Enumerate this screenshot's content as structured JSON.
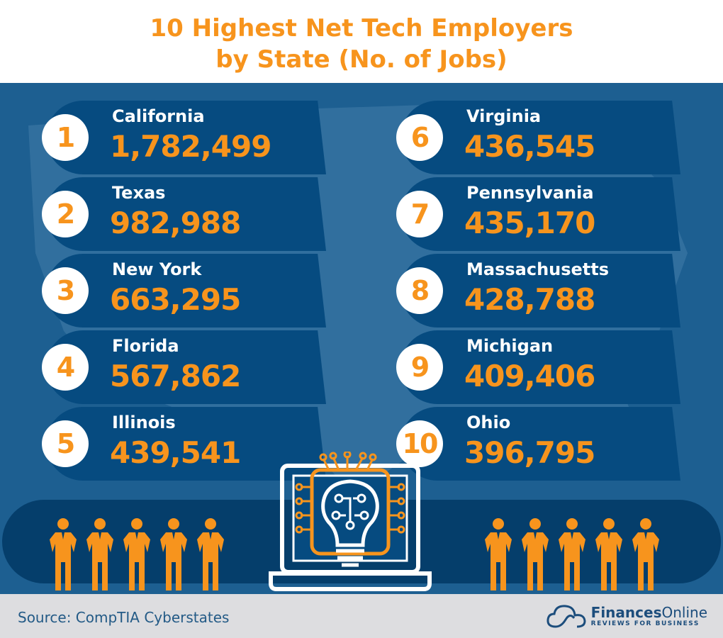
{
  "title": {
    "line1": "10 Highest Net Tech Employers",
    "line2": "by State (No. of Jobs)"
  },
  "colors": {
    "background": "#1d5f91",
    "panel": "#064b80",
    "accent": "#f7941d",
    "footer": "#dddde0"
  },
  "rankings": [
    {
      "rank": "1",
      "state": "California",
      "jobs": "1,782,499"
    },
    {
      "rank": "2",
      "state": "Texas",
      "jobs": "982,988"
    },
    {
      "rank": "3",
      "state": "New York",
      "jobs": "663,295"
    },
    {
      "rank": "4",
      "state": "Florida",
      "jobs": "567,862"
    },
    {
      "rank": "5",
      "state": "Illinois",
      "jobs": "439,541"
    },
    {
      "rank": "6",
      "state": "Virginia",
      "jobs": "436,545"
    },
    {
      "rank": "7",
      "state": "Pennsylvania",
      "jobs": "435,170"
    },
    {
      "rank": "8",
      "state": "Massachusetts",
      "jobs": "428,788"
    },
    {
      "rank": "9",
      "state": "Michigan",
      "jobs": "409,406"
    },
    {
      "rank": "10",
      "state": "Ohio",
      "jobs": "396,795"
    }
  ],
  "icons": [
    "person-icon",
    "laptop-lightbulb-icon",
    "cloud-logo-icon"
  ],
  "footer": {
    "source": "Source: CompTIA Cyberstates",
    "brand_bold": "Finances",
    "brand_light": "Online",
    "tagline": "REVIEWS FOR BUSINESS"
  }
}
